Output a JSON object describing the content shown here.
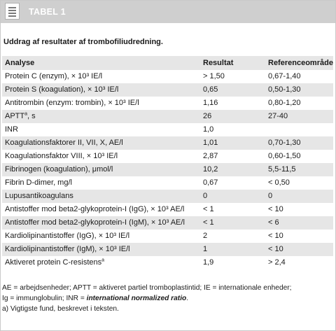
{
  "header": {
    "title": "TABEL 1",
    "icon": "document-lines-icon",
    "bg_color": "#cfcfcf"
  },
  "subtitle": "Uddrag af resultater af trombofiliudredning.",
  "table": {
    "columns": [
      "Analyse",
      "Resultat",
      "Referenceområde"
    ],
    "rows": [
      [
        "Protein C (enzym), × 10³ IE/l",
        "> 1,50",
        "0,67-1,40"
      ],
      [
        "Protein S (koagulation), × 10³ IE/l",
        "0,65",
        "0,50-1,30"
      ],
      [
        "Antitrombin (enzym: trombin), × 10³ IE/l",
        "1,16",
        "0,80-1,20"
      ],
      [
        "APTT",
        "26",
        "27-40"
      ],
      [
        "INR",
        "1,0",
        ""
      ],
      [
        "Koagulationsfaktorer II, VII, X, AE/l",
        "1,01",
        "0,70-1,30"
      ],
      [
        "Koagulationsfaktor VIII, × 10³ IE/l",
        "2,87",
        "0,60-1,50"
      ],
      [
        "Fibrinogen (koagulation), μmol/l",
        "10,2",
        "5,5-11,5"
      ],
      [
        "Fibrin D-dimer, mg/l",
        "0,67",
        "< 0,50"
      ],
      [
        "Lupusantikoagulans",
        "0",
        "0"
      ],
      [
        "Antistoffer mod beta2-glykoprotein-I (IgG), × 10³ AE/l",
        "< 1",
        "< 10"
      ],
      [
        "Antistoffer mod beta2-glykoprotein-I (IgM), × 10³ AE/l",
        "< 1",
        "< 6"
      ],
      [
        "Kardiolipinantistoffer (IgG), × 10³ IE/l",
        "2",
        "< 10"
      ],
      [
        "Kardiolipinantistoffer (IgM), × 10³ IE/l",
        "1",
        "< 10"
      ],
      [
        "Aktiveret protein C-resistens",
        "1,9",
        "> 2,4"
      ]
    ],
    "row_suffix_sup": {
      "3": "a, ",
      "14": "a"
    },
    "shade_color": "#e6e6e6"
  },
  "footnotes": {
    "line1": "AE = arbejdsenheder;  APTT = aktiveret partiel tromboplastintid;  IE = internationale enheder;",
    "line2_prefix": "Ig = immunglobulin;  INR = ",
    "line2_italic": "international normalized ratio",
    "line2_suffix": ".",
    "line3": "a) Vigtigste fund, beskrevet i teksten."
  }
}
